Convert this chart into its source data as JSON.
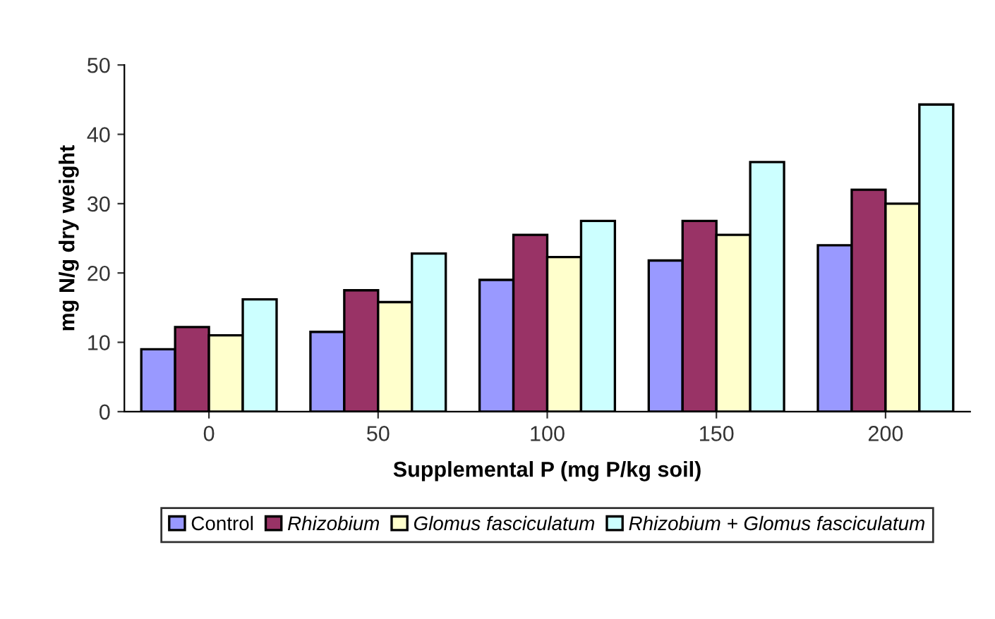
{
  "chart_data": {
    "type": "bar",
    "xlabel": "Supplemental P (mg P/kg soil)",
    "ylabel": "mg N/g dry weight",
    "categories": [
      "0",
      "50",
      "100",
      "150",
      "200"
    ],
    "series": [
      {
        "name": "Control",
        "color": "#9999ff",
        "values": [
          9,
          11.5,
          19,
          21.8,
          24
        ]
      },
      {
        "name": "Rhizobium",
        "color": "#993366",
        "values": [
          12.2,
          17.5,
          25.5,
          27.5,
          32
        ]
      },
      {
        "name": "Glomus fasciculatum",
        "color": "#ffffcc",
        "values": [
          11,
          15.8,
          22.3,
          25.5,
          30
        ]
      },
      {
        "name": "Rhizobium + Glomus fasciculatum",
        "color": "#ccffff",
        "values": [
          16.2,
          22.8,
          27.5,
          36,
          44.3
        ]
      }
    ],
    "ylim": [
      0,
      50
    ],
    "yticks": [
      0,
      10,
      20,
      30,
      40,
      50
    ],
    "grid": false,
    "legend": "bottom"
  }
}
